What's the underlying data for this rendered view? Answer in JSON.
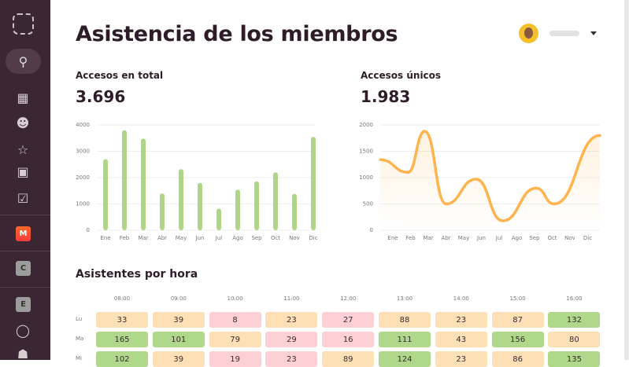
{
  "header": {
    "title": "Asistencia de los miembros"
  },
  "sidebar": {
    "badges": [
      "M",
      "C",
      "E"
    ]
  },
  "stats": [
    {
      "label": "Accesos en total",
      "value": "3.696"
    },
    {
      "label": "Accesos únicos",
      "value": "1.983"
    }
  ],
  "colors": {
    "sidebar": "#3b2633",
    "bar": "#afd687",
    "line": "#fdb44f",
    "high": "#b0d88a",
    "mid": "#fde0b5",
    "low": "#fdd0d6"
  },
  "chart_data": [
    {
      "type": "bar",
      "title": "Accesos en total",
      "categories": [
        "Ene",
        "Feb",
        "Mar",
        "Abr",
        "May",
        "Jun",
        "Jul",
        "Ago",
        "Sep",
        "Oct",
        "Nov",
        "Dic"
      ],
      "values": [
        2700,
        3800,
        3480,
        1400,
        2320,
        1800,
        820,
        1540,
        1860,
        2200,
        1380,
        3550
      ],
      "ylim": [
        0,
        4000
      ],
      "yticks": [
        "0",
        "1000",
        "2000",
        "3000",
        "4000"
      ]
    },
    {
      "type": "line",
      "title": "Accesos únicos",
      "categories": [
        "Ene",
        "Feb",
        "Mar",
        "Abr",
        "May",
        "Jun",
        "Jul",
        "Ago",
        "Sep",
        "Oct",
        "Nov",
        "Dic"
      ],
      "x": [
        -0.7,
        0.85,
        1.8,
        3.0,
        4.7,
        6.2,
        8.1,
        9.1,
        11.7
      ],
      "values": [
        1340,
        1100,
        1880,
        500,
        970,
        180,
        800,
        500,
        1800
      ],
      "ylim": [
        0,
        2000
      ],
      "yticks": [
        "0",
        "500",
        "1000",
        "1500",
        "2000"
      ]
    }
  ],
  "heatmap": {
    "title": "Asistentes por hora",
    "hours": [
      "08:00",
      "09:00",
      "10:00",
      "11:00",
      "12:00",
      "13:00",
      "14:00",
      "15:00",
      "16:00"
    ],
    "rows": [
      {
        "day": "Lu",
        "values": [
          33,
          39,
          8,
          23,
          27,
          88,
          23,
          87,
          132
        ]
      },
      {
        "day": "Ma",
        "values": [
          165,
          101,
          79,
          29,
          16,
          111,
          43,
          156,
          80
        ]
      },
      {
        "day": "Mi",
        "values": [
          102,
          39,
          19,
          23,
          89,
          124,
          23,
          86,
          135
        ]
      }
    ]
  }
}
